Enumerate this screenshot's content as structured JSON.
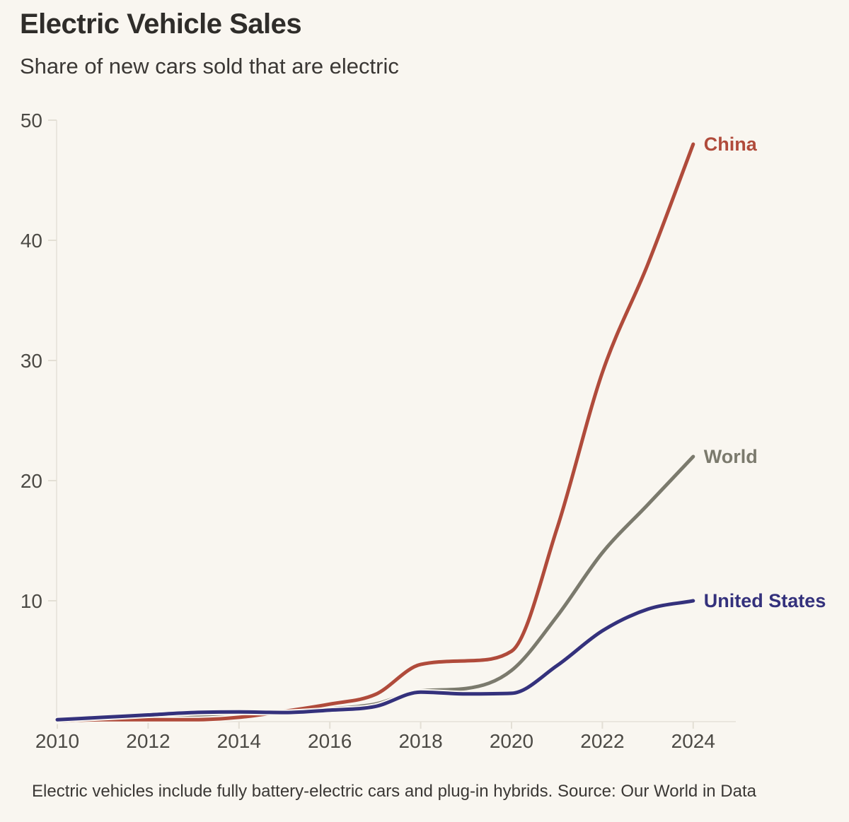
{
  "header": {
    "title": "Electric Vehicle Sales",
    "subtitle": "Share of new cars sold that are electric"
  },
  "footer": {
    "note": "Electric vehicles include fully battery-electric cars and plug-in hybrids. Source: Our World in Data"
  },
  "colors": {
    "background": "#f9f6f0",
    "axis_line": "#eae6de",
    "tick_mark": "#e3dfd5",
    "tick_text": "#4c4a45",
    "china": "#b04b3b",
    "world": "#7b7a6d",
    "united_states": "#34317c"
  },
  "chart_data": {
    "type": "line",
    "title": "Electric Vehicle Sales",
    "subtitle": "Share of new cars sold that are electric",
    "xlabel": "",
    "ylabel": "",
    "x": [
      2010,
      2011,
      2012,
      2013,
      2014,
      2015,
      2016,
      2017,
      2018,
      2019,
      2020,
      2021,
      2022,
      2023,
      2024
    ],
    "x_tick_labels": [
      "2010",
      "2012",
      "2014",
      "2016",
      "2018",
      "2020",
      "2022",
      "2024"
    ],
    "y_ticks": [
      10,
      20,
      30,
      40,
      50
    ],
    "y_tick_labels": [
      "10",
      "20",
      "30",
      "40",
      "50"
    ],
    "ylim": [
      0,
      50
    ],
    "xlim": [
      2010,
      2024
    ],
    "grid": false,
    "legend_position": "end-of-line",
    "series": [
      {
        "name": "World",
        "color": "#7b7a6d",
        "values": [
          0.0,
          0.1,
          0.2,
          0.3,
          0.4,
          0.7,
          1.0,
          1.4,
          2.5,
          2.7,
          4.2,
          8.7,
          14,
          18,
          22
        ]
      },
      {
        "name": "China",
        "color": "#b04b3b",
        "values": [
          0.0,
          0.1,
          0.1,
          0.1,
          0.3,
          0.8,
          1.4,
          2.2,
          4.7,
          5.0,
          5.8,
          16,
          29,
          38,
          48
        ]
      },
      {
        "name": "United States",
        "color": "#34317c",
        "values": [
          0.1,
          0.3,
          0.5,
          0.7,
          0.75,
          0.7,
          0.9,
          1.2,
          2.4,
          2.25,
          2.3,
          4.6,
          7.5,
          9.3,
          10
        ]
      }
    ]
  }
}
